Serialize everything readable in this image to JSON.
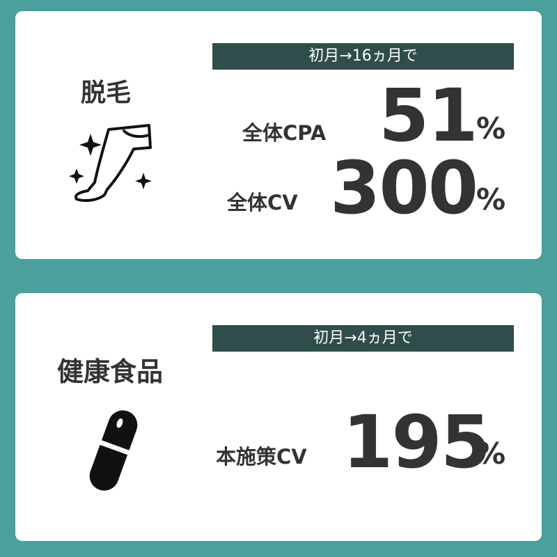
{
  "cards": [
    {
      "category": "脱毛",
      "icon": "leg-sparkle-icon",
      "banner": "初月→16ヵ月で",
      "metrics": [
        {
          "label": "全体CPA",
          "value": "51",
          "unit": "%"
        },
        {
          "label": "全体CV",
          "value": "300",
          "unit": "%"
        }
      ]
    },
    {
      "category": "健康食品",
      "icon": "capsule-icon",
      "banner": "初月→4ヵ月で",
      "metrics": [
        {
          "label": "本施策CV",
          "value": "195",
          "unit": "%"
        }
      ]
    }
  ],
  "colors": {
    "background": "#4b9f9c",
    "card": "#ffffff",
    "banner": "#2f4d4a",
    "text": "#333333"
  }
}
